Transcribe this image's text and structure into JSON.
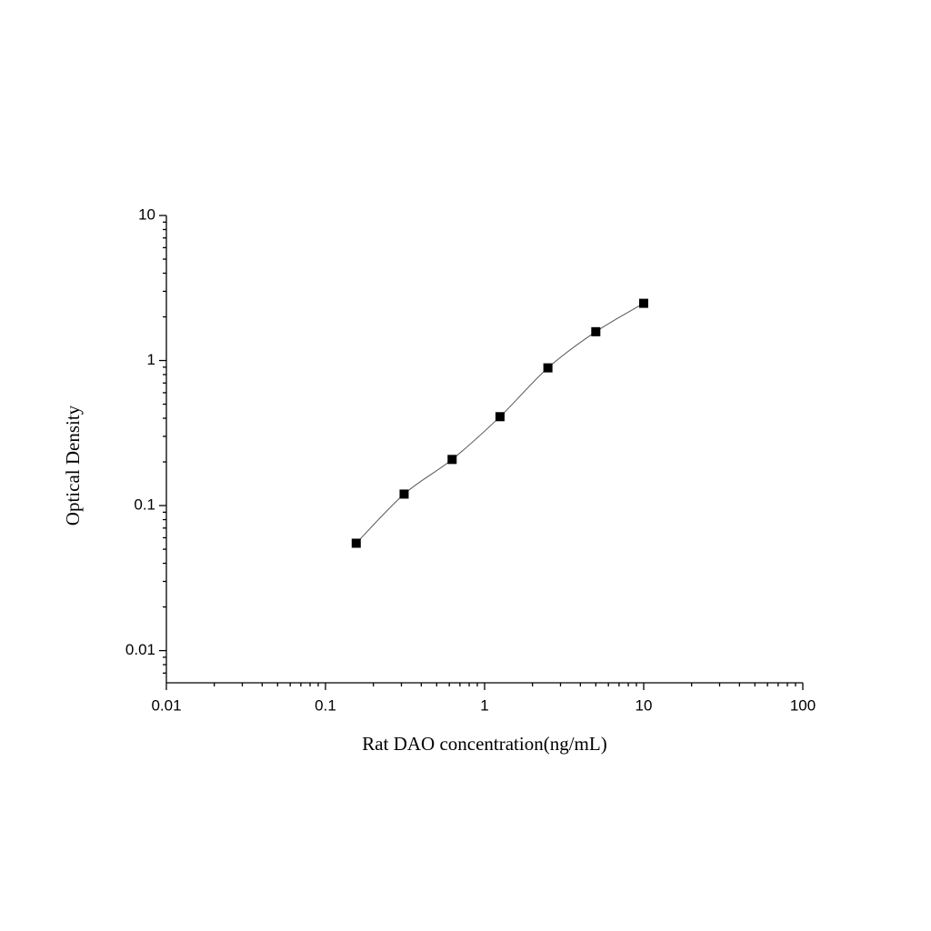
{
  "chart_data": {
    "type": "scatter",
    "x_label": "Rat DAO concentration(ng/mL)",
    "y_label": "Optical Density",
    "x": [
      0.156,
      0.312,
      0.625,
      1.25,
      2.5,
      5,
      10
    ],
    "values": [
      0.055,
      0.12,
      0.208,
      0.41,
      0.89,
      1.58,
      2.48
    ],
    "color": "#000000",
    "xlim": [
      0.01,
      100
    ],
    "xticks": [
      0.01,
      0.1,
      1,
      10,
      100
    ],
    "ylim": [
      0.006,
      10
    ],
    "yticks": [
      0.01,
      0.1,
      1,
      10
    ],
    "x_log": true,
    "y_log": true,
    "fit_curve": true
  }
}
